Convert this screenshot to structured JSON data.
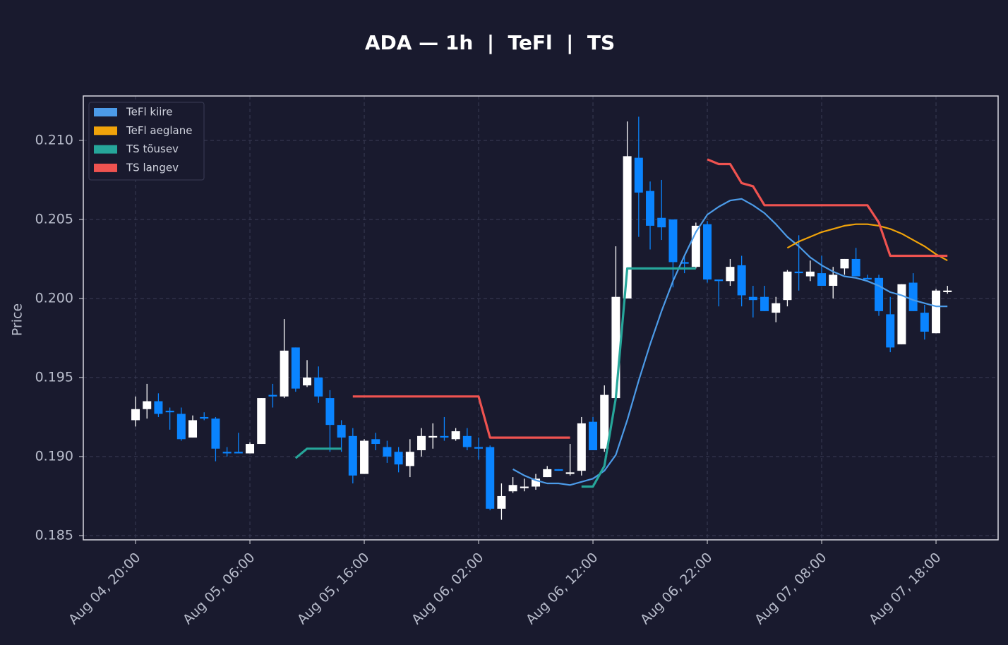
{
  "chart_data": {
    "type": "candlestick",
    "title": "ADA — 1h  |  TeFl  |  TS",
    "ylabel": "Price",
    "categories": [
      "Aug 04, 20:00",
      null,
      null,
      null,
      null,
      null,
      null,
      null,
      null,
      null,
      "Aug 05, 06:00",
      null,
      null,
      null,
      null,
      null,
      null,
      null,
      null,
      null,
      "Aug 05, 16:00",
      null,
      null,
      null,
      null,
      null,
      null,
      null,
      null,
      null,
      "Aug 06, 02:00",
      null,
      null,
      null,
      null,
      null,
      null,
      null,
      null,
      null,
      "Aug 06, 12:00",
      null,
      null,
      null,
      null,
      null,
      null,
      null,
      null,
      null,
      "Aug 06, 22:00",
      null,
      null,
      null,
      null,
      null,
      null,
      null,
      null,
      null,
      "Aug 07, 08:00",
      null,
      null,
      null,
      null,
      null,
      null,
      null,
      null,
      null,
      "Aug 07, 18:00",
      null
    ],
    "open": [
      0.1923,
      0.193,
      0.1935,
      0.1929,
      0.1927,
      0.1912,
      0.1925,
      0.1924,
      0.1903,
      0.1903,
      0.1902,
      0.1908,
      0.1939,
      0.1938,
      0.1969,
      0.1945,
      0.195,
      0.1937,
      0.192,
      0.1913,
      0.1889,
      0.1911,
      0.1906,
      0.1903,
      0.1894,
      0.1904,
      0.1912,
      0.1913,
      0.1911,
      0.1913,
      0.1906,
      0.1906,
      0.1867,
      0.1878,
      0.188,
      0.1881,
      0.1887,
      0.1892,
      0.1889,
      0.1891,
      0.1922,
      0.1905,
      0.1937,
      0.2,
      0.2089,
      0.2068,
      0.2051,
      0.205,
      0.2023,
      0.202,
      0.2047,
      0.2012,
      0.2011,
      0.2021,
      0.2001,
      0.2001,
      0.1991,
      0.1999,
      0.2017,
      0.2014,
      0.2016,
      0.2008,
      0.2019,
      0.2025,
      0.2013,
      0.2013,
      0.199,
      0.1971,
      0.201,
      0.1991,
      0.1978,
      0.2004
    ],
    "high": [
      0.1938,
      0.1946,
      0.194,
      0.1931,
      0.1931,
      0.1926,
      0.1928,
      0.1925,
      0.1906,
      0.1915,
      0.1909,
      0.1937,
      0.1946,
      0.1987,
      0.1969,
      0.1961,
      0.1957,
      0.1942,
      0.1923,
      0.1918,
      0.1911,
      0.1915,
      0.191,
      0.1906,
      0.1911,
      0.1918,
      0.1921,
      0.1925,
      0.1918,
      0.1918,
      0.1912,
      0.1907,
      0.1883,
      0.1887,
      0.1886,
      0.1889,
      0.1894,
      0.1892,
      0.1908,
      0.1925,
      0.1925,
      0.1945,
      0.2033,
      0.2112,
      0.2115,
      0.2074,
      0.2075,
      0.205,
      0.2027,
      0.2048,
      0.2049,
      0.2012,
      0.2025,
      0.2027,
      0.2008,
      0.2008,
      0.2001,
      0.2018,
      0.204,
      0.2024,
      0.2027,
      0.202,
      0.2025,
      0.2032,
      0.2015,
      0.2015,
      0.2001,
      0.2009,
      0.2016,
      0.1996,
      0.2006,
      0.2008
    ],
    "low": [
      0.1919,
      0.1924,
      0.1925,
      0.1917,
      0.191,
      0.1912,
      0.1923,
      0.1897,
      0.19,
      0.1902,
      0.1902,
      0.1908,
      0.1931,
      0.1937,
      0.1941,
      0.1944,
      0.1934,
      0.1903,
      0.1903,
      0.1883,
      0.1889,
      0.1904,
      0.1896,
      0.189,
      0.1887,
      0.19,
      0.1905,
      0.191,
      0.191,
      0.1904,
      0.1898,
      0.1866,
      0.186,
      0.1877,
      0.1878,
      0.1879,
      0.1887,
      0.1891,
      0.1888,
      0.1888,
      0.1904,
      0.1903,
      0.1936,
      0.2,
      0.2039,
      0.2031,
      0.2037,
      0.2007,
      0.2016,
      0.2019,
      0.201,
      0.1995,
      0.2008,
      0.1995,
      0.1988,
      0.1992,
      0.1985,
      0.1995,
      0.2005,
      0.2011,
      0.2008,
      0.2,
      0.2015,
      0.2014,
      0.2012,
      0.1989,
      0.1966,
      0.1971,
      0.1992,
      0.1974,
      0.1978,
      0.2003
    ],
    "close": [
      0.193,
      0.1935,
      0.1927,
      0.1928,
      0.1911,
      0.1923,
      0.1924,
      0.1905,
      0.1902,
      0.1902,
      0.1908,
      0.1937,
      0.1938,
      0.1967,
      0.1943,
      0.195,
      0.1938,
      0.192,
      0.1912,
      0.1888,
      0.191,
      0.1908,
      0.19,
      0.1895,
      0.1903,
      0.1913,
      0.1913,
      0.1912,
      0.1916,
      0.1906,
      0.1905,
      0.1867,
      0.1875,
      0.1882,
      0.1881,
      0.1886,
      0.1892,
      0.1891,
      0.189,
      0.1921,
      0.1904,
      0.1939,
      0.2001,
      0.209,
      0.2067,
      0.2046,
      0.2045,
      0.2023,
      0.2022,
      0.2046,
      0.2012,
      0.2011,
      0.202,
      0.2002,
      0.1999,
      0.1992,
      0.1997,
      0.2017,
      0.2016,
      0.2017,
      0.2008,
      0.2015,
      0.2025,
      0.2014,
      0.2012,
      0.1992,
      0.1969,
      0.2009,
      0.1992,
      0.1979,
      0.2005,
      0.2005
    ],
    "up_color": "#ffffff",
    "down_color": "#0a84ff",
    "series": [
      {
        "name": "TeFl kiire",
        "color": "#4c9be8",
        "values": [
          null,
          null,
          null,
          null,
          null,
          null,
          null,
          null,
          null,
          null,
          null,
          null,
          null,
          null,
          null,
          null,
          null,
          null,
          null,
          null,
          null,
          null,
          null,
          null,
          null,
          null,
          null,
          null,
          null,
          null,
          null,
          null,
          null,
          0.1892,
          0.1888,
          0.1885,
          0.1883,
          0.1883,
          0.1882,
          0.1884,
          0.1886,
          0.1891,
          0.1901,
          0.1923,
          0.1948,
          0.1971,
          0.1992,
          0.2011,
          0.2027,
          0.2042,
          0.2053,
          0.2058,
          0.2062,
          0.2063,
          0.2059,
          0.2054,
          0.2047,
          0.2039,
          0.2033,
          0.2026,
          0.2021,
          0.2017,
          0.2014,
          0.2013,
          0.2011,
          0.2008,
          0.2004,
          0.2002,
          0.1999,
          0.1997,
          0.1995,
          0.1995
        ]
      },
      {
        "name": "TeFl aeglane",
        "color": "#f0a30a",
        "values": [
          null,
          null,
          null,
          null,
          null,
          null,
          null,
          null,
          null,
          null,
          null,
          null,
          null,
          null,
          null,
          null,
          null,
          null,
          null,
          null,
          null,
          null,
          null,
          null,
          null,
          null,
          null,
          null,
          null,
          null,
          null,
          null,
          null,
          null,
          null,
          null,
          null,
          null,
          null,
          null,
          null,
          null,
          null,
          null,
          null,
          null,
          null,
          null,
          null,
          null,
          null,
          null,
          null,
          null,
          null,
          null,
          null,
          0.2032,
          0.2036,
          0.2039,
          0.2042,
          0.2044,
          0.2046,
          0.2047,
          0.2047,
          0.2046,
          0.2044,
          0.2041,
          0.2037,
          0.2033,
          0.2028,
          0.2024
        ]
      },
      {
        "name": "TS tõusev",
        "color": "#26a69a",
        "values": [
          null,
          null,
          null,
          null,
          null,
          null,
          null,
          null,
          null,
          null,
          null,
          null,
          null,
          null,
          0.1899,
          0.1905,
          0.1905,
          0.1905,
          0.1905,
          null,
          null,
          null,
          null,
          null,
          null,
          null,
          null,
          null,
          null,
          null,
          null,
          null,
          null,
          null,
          null,
          null,
          null,
          null,
          null,
          0.1881,
          0.1881,
          0.1894,
          0.1937,
          0.2019,
          0.2019,
          0.2019,
          0.2019,
          0.2019,
          0.2019,
          0.2019,
          null,
          null,
          null,
          null,
          null,
          null,
          null,
          null,
          null,
          null,
          null,
          null,
          null,
          null,
          null,
          null,
          null,
          null,
          null,
          null,
          null,
          null
        ]
      },
      {
        "name": "TS langev",
        "color": "#ef5350",
        "values": [
          null,
          null,
          null,
          null,
          null,
          null,
          null,
          null,
          null,
          null,
          null,
          null,
          null,
          null,
          null,
          null,
          null,
          null,
          null,
          0.1938,
          0.1938,
          0.1938,
          0.1938,
          0.1938,
          0.1938,
          0.1938,
          0.1938,
          0.1938,
          0.1938,
          0.1938,
          0.1938,
          0.1912,
          0.1912,
          0.1912,
          0.1912,
          0.1912,
          0.1912,
          0.1912,
          0.1912,
          null,
          null,
          null,
          null,
          null,
          null,
          null,
          null,
          null,
          null,
          null,
          0.2088,
          0.2085,
          0.2085,
          0.2073,
          0.2071,
          0.2059,
          0.2059,
          0.2059,
          0.2059,
          0.2059,
          0.2059,
          0.2059,
          0.2059,
          0.2059,
          0.2059,
          0.2048,
          0.2027,
          0.2027,
          0.2027,
          0.2027,
          0.2027,
          0.2027
        ]
      }
    ],
    "ylim": [
      0.18473,
      0.21281
    ],
    "yticks": [
      0.185,
      {
        "value": 0.19,
        "label": "0.190"
      },
      0.195,
      {
        "value": 0.2,
        "label": "0.200"
      },
      0.205,
      {
        "value": 0.21,
        "label": "0.210"
      }
    ],
    "grid": true,
    "legend": "upper left"
  }
}
